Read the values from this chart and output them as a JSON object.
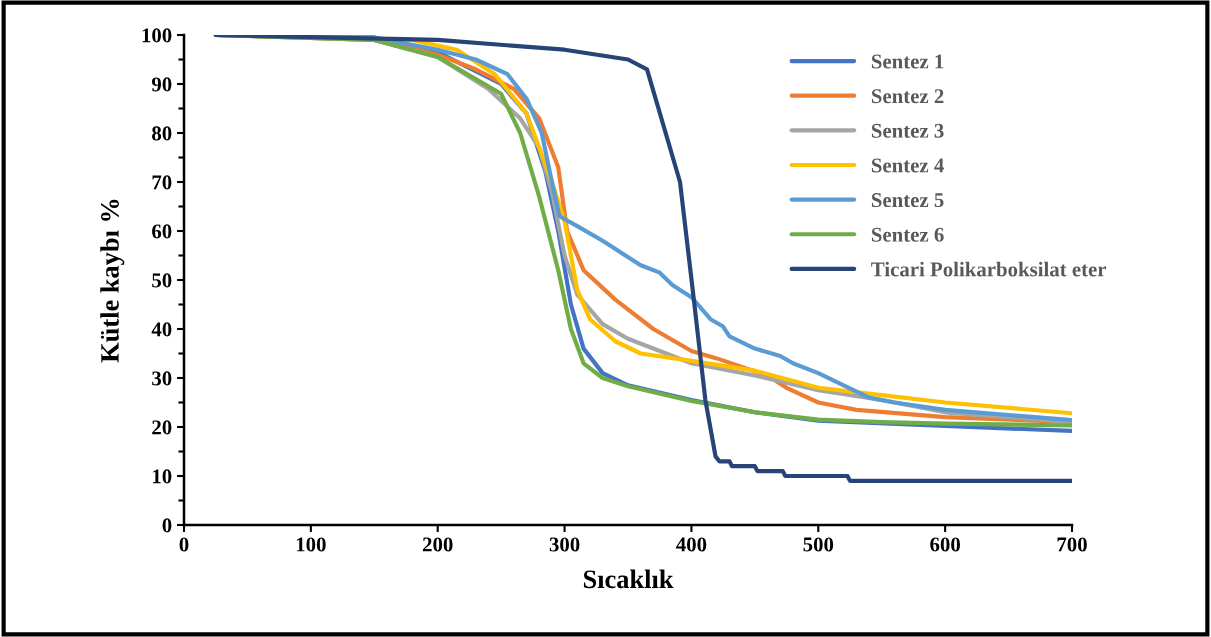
{
  "chart_data": {
    "type": "line",
    "xlabel": "Sıcaklık",
    "ylabel": "Kütle kaybı %",
    "xlim": [
      0,
      700
    ],
    "ylim": [
      0,
      100
    ],
    "xticks": [
      0,
      100,
      200,
      300,
      400,
      500,
      600,
      700
    ],
    "yticks": [
      0,
      10,
      20,
      30,
      40,
      50,
      60,
      70,
      80,
      90,
      100
    ],
    "grid": false,
    "legend": "top right",
    "marker": "none",
    "line_style": "solid",
    "series": [
      {
        "name": "Sentez 1",
        "color": "#4472c4",
        "x": [
          25,
          150,
          200,
          250,
          270,
          285,
          295,
          305,
          315,
          330,
          350,
          400,
          450,
          500,
          600,
          700
        ],
        "values": [
          100,
          99.5,
          96.5,
          90,
          84,
          72,
          60,
          45,
          36,
          31,
          28.5,
          25.5,
          23,
          21.3,
          20.2,
          19.2
        ]
      },
      {
        "name": "Sentez 2",
        "color": "#ed7d31",
        "x": [
          25,
          150,
          200,
          230,
          260,
          280,
          295,
          302,
          315,
          340,
          370,
          400,
          420,
          460,
          475,
          500,
          530,
          600,
          700
        ],
        "values": [
          100,
          99,
          96,
          93,
          89,
          83,
          73,
          60,
          52,
          46,
          40,
          35.5,
          34,
          30.5,
          28,
          25,
          23.5,
          22,
          21
        ]
      },
      {
        "name": "Sentez 3",
        "color": "#a5a5a5",
        "x": [
          25,
          150,
          200,
          240,
          265,
          280,
          290,
          300,
          310,
          330,
          350,
          400,
          450,
          500,
          550,
          600,
          700
        ],
        "values": [
          100,
          99,
          95.5,
          89,
          83,
          77,
          68,
          55,
          47,
          41,
          38,
          33,
          30.5,
          27.5,
          25.5,
          23,
          21
        ]
      },
      {
        "name": "Sentez 4",
        "color": "#ffc000",
        "x": [
          25,
          180,
          215,
          245,
          270,
          290,
          300,
          310,
          320,
          340,
          360,
          400,
          450,
          500,
          550,
          600,
          700
        ],
        "values": [
          100,
          99,
          97,
          92,
          84,
          70,
          62,
          48,
          42,
          37.5,
          35,
          33.5,
          31.5,
          28,
          26.5,
          25,
          22.8
        ]
      },
      {
        "name": "Sentez 5",
        "color": "#5b9bd5",
        "x": [
          25,
          150,
          200,
          230,
          255,
          270,
          282,
          290,
          296,
          310,
          330,
          360,
          375,
          385,
          400,
          415,
          425,
          430,
          450,
          470,
          480,
          500,
          520,
          540,
          560,
          600,
          700
        ],
        "values": [
          100,
          99.5,
          97,
          95,
          92,
          87,
          80,
          70,
          63,
          61,
          58,
          53,
          51.5,
          49,
          46.5,
          42,
          40.5,
          38.5,
          36,
          34.5,
          33,
          31,
          28.5,
          26,
          25,
          23.5,
          21.4
        ]
      },
      {
        "name": "Sentez 6",
        "color": "#70ad47",
        "x": [
          25,
          150,
          200,
          250,
          265,
          280,
          295,
          305,
          315,
          330,
          350,
          400,
          450,
          500,
          550,
          600,
          700
        ],
        "values": [
          100,
          99,
          95.5,
          88,
          80,
          67,
          52,
          40,
          33,
          30,
          28.3,
          25.3,
          23,
          21.5,
          21,
          20.7,
          20.3
        ]
      },
      {
        "name": "Ticari Polikarboksilat eter",
        "color": "#264478",
        "x": [
          25,
          200,
          300,
          350,
          365,
          391,
          401,
          411,
          419,
          422,
          430,
          432,
          450,
          452,
          472,
          474,
          523,
          525,
          700
        ],
        "values": [
          100,
          99,
          97,
          95,
          93,
          70,
          48,
          25.5,
          14,
          13,
          13,
          12,
          12,
          11,
          11,
          10,
          10,
          9,
          9
        ]
      }
    ]
  }
}
